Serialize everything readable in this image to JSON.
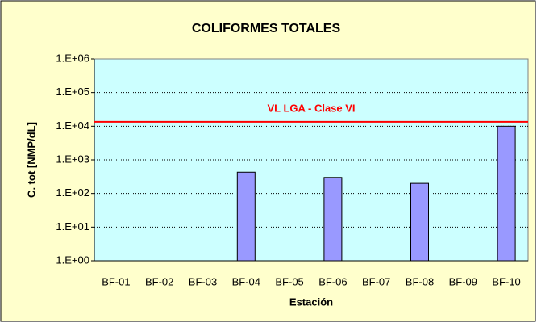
{
  "chart_data": {
    "type": "bar",
    "title": "COLIFORMES TOTALES",
    "x_label": "Estación",
    "y_label": "C. tot [NMP/dL]",
    "categories": [
      "BF-01",
      "BF-02",
      "BF-03",
      "BF-04",
      "BF-05",
      "BF-06",
      "BF-07",
      "BF-08",
      "BF-09",
      "BF-10"
    ],
    "values": [
      null,
      null,
      null,
      430,
      null,
      300,
      null,
      200,
      null,
      10000
    ],
    "color": "#9999ff",
    "log_scale": true,
    "ylim": [
      1,
      1000000
    ],
    "yticks": [
      {
        "value": 1,
        "label": "1.E+00"
      },
      {
        "value": 10,
        "label": "1.E+01"
      },
      {
        "value": 100,
        "label": "1.E+02"
      },
      {
        "value": 1000,
        "label": "1.E+03"
      },
      {
        "value": 10000,
        "label": "1.E+04"
      },
      {
        "value": 100000,
        "label": "1.E+05"
      },
      {
        "value": 1000000,
        "label": "1.E+06"
      }
    ],
    "grid": true,
    "reference_line": {
      "value": 13500,
      "label": "VL LGA - Clase VI",
      "color": "#ff0000"
    }
  }
}
